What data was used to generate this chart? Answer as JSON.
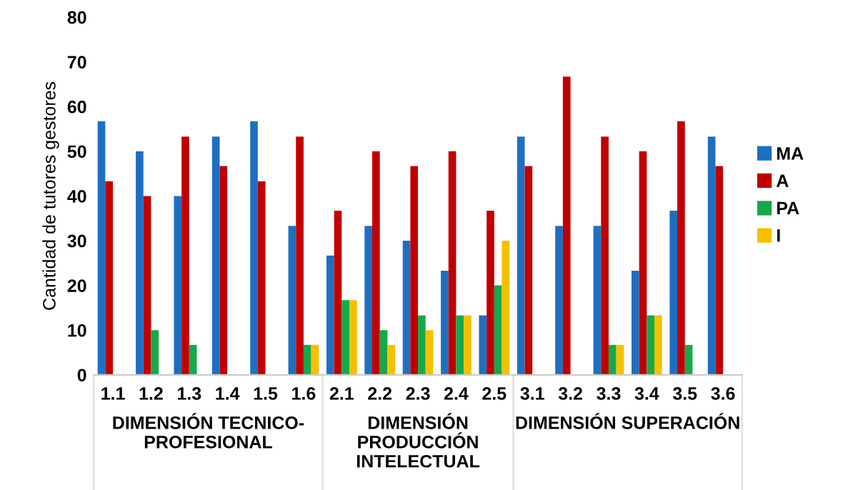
{
  "chart_data": {
    "type": "bar",
    "ylabel": "Cantidad de tutores gestores",
    "categories": [
      "1.1",
      "1.2",
      "1.3",
      "1.4",
      "1.5",
      "1.6",
      "2.1",
      "2.2",
      "2.3",
      "2.4",
      "2.5",
      "3.1",
      "3.2",
      "3.3",
      "3.4",
      "3.5",
      "3.6"
    ],
    "series": [
      {
        "name": "MA",
        "color": "#1f6fc0",
        "values": [
          56.7,
          50,
          40,
          53.3,
          56.7,
          33.3,
          26.7,
          33.3,
          30,
          23.3,
          13.3,
          53.3,
          33.3,
          33.3,
          23.3,
          36.7,
          53.3
        ]
      },
      {
        "name": "A",
        "color": "#c00000",
        "values": [
          43.3,
          40,
          53.3,
          46.7,
          43.3,
          53.3,
          36.7,
          50,
          46.7,
          50,
          36.7,
          46.7,
          66.7,
          53.3,
          50,
          56.7,
          46.7
        ]
      },
      {
        "name": "PA",
        "color": "#17a84a",
        "values": [
          0,
          10,
          6.7,
          0,
          0,
          6.7,
          16.7,
          10,
          13.3,
          13.3,
          20,
          0,
          0,
          6.7,
          13.3,
          6.7,
          0
        ]
      },
      {
        "name": "I",
        "color": "#f5c000",
        "values": [
          0,
          0,
          0,
          0,
          0,
          6.7,
          16.7,
          6.7,
          10,
          13.3,
          30,
          0,
          0,
          6.7,
          13.3,
          0,
          0
        ]
      }
    ],
    "annotations": [
      "DIMENSIÓN TECNICO-\nPROFESIONAL",
      "DIMENSIÓN\nPRODUCCIÓN\nINTELECTUAL",
      "DIMENSIÓN SUPERACIÓN"
    ],
    "ylim": [
      0,
      80
    ],
    "yticks": [
      0,
      10,
      20,
      30,
      40,
      50,
      60,
      70,
      80
    ],
    "grid": false,
    "legend": "right"
  }
}
